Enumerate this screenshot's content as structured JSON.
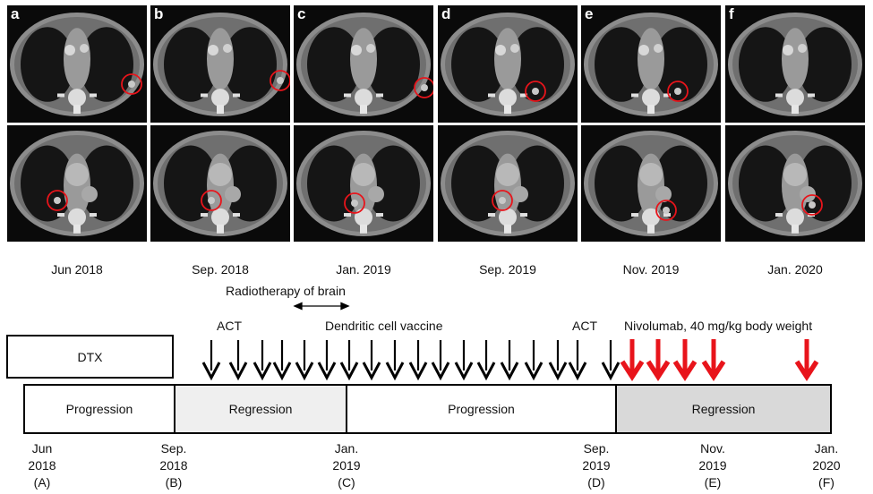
{
  "panels": [
    {
      "letter": "a",
      "date": "Jun 2018"
    },
    {
      "letter": "b",
      "date": "Sep. 2018"
    },
    {
      "letter": "c",
      "date": "Jan. 2019"
    },
    {
      "letter": "d",
      "date": "Sep. 2019"
    },
    {
      "letter": "e",
      "date": "Nov. 2019"
    },
    {
      "letter": "f",
      "date": "Jan. 2020"
    }
  ],
  "radiotherapy_label": "Radiotherapy of brain",
  "labels": {
    "act1": "ACT",
    "act2": "ACT",
    "vaccine": "Dendritic cell vaccine",
    "nivolumab": "Nivolumab, 40 mg/kg body weight",
    "dtx": "DTX"
  },
  "phases": [
    {
      "label": "Progression",
      "fill": "#ffffff"
    },
    {
      "label": "Regression",
      "fill": "#efefef"
    },
    {
      "label": "Progression",
      "fill": "#ffffff"
    },
    {
      "label": "Regression",
      "fill": "#d9d9d9"
    }
  ],
  "axis": [
    {
      "line1": "Jun",
      "line2": "2018",
      "line3": "(A)"
    },
    {
      "line1": "Sep.",
      "line2": "2018",
      "line3": "(B)"
    },
    {
      "line1": "Jan.",
      "line2": "2019",
      "line3": "(C)"
    },
    {
      "line1": "Sep.",
      "line2": "2019",
      "line3": "(D)"
    },
    {
      "line1": "Nov.",
      "line2": "2019",
      "line3": "(E)"
    },
    {
      "line1": "Jan.",
      "line2": "2020",
      "line3": "(F)"
    }
  ],
  "colors": {
    "black_arrow": "#000000",
    "red_arrow": "#e8141b",
    "lesion_circle": "#e8141b"
  }
}
